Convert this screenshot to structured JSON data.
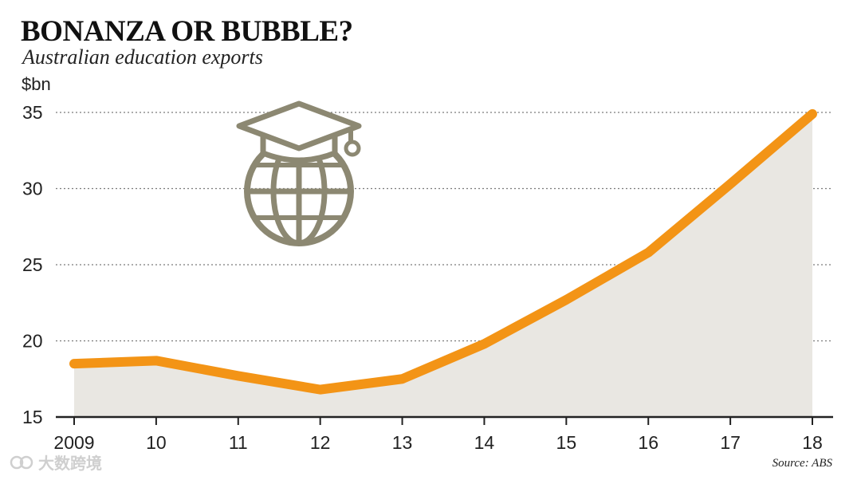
{
  "header": {
    "title": "BONANZA OR BUBBLE?",
    "subtitle": "Australian education exports"
  },
  "footer": {
    "source": "Source: ABS",
    "watermark": "大数跨境"
  },
  "chart_data": {
    "type": "area",
    "title": "BONANZA OR BUBBLE?",
    "subtitle": "Australian education exports",
    "ylabel": "$bn",
    "xlabel": "",
    "x": [
      "2009",
      "10",
      "11",
      "12",
      "13",
      "14",
      "15",
      "16",
      "17",
      "18"
    ],
    "series": [
      {
        "values": [
          18.5,
          18.7,
          17.7,
          16.8,
          17.5,
          19.8,
          22.7,
          25.8,
          30.3,
          34.9
        ]
      }
    ],
    "ylim": [
      15,
      35
    ],
    "yticks": [
      15,
      20,
      25,
      30,
      35
    ],
    "grid": true,
    "colors": {
      "line": "#F39416",
      "area": "#E9E7E2",
      "grid": "#7a7a7a",
      "icon": "#8C8872"
    },
    "icon": "graduation-cap-globe-icon"
  }
}
